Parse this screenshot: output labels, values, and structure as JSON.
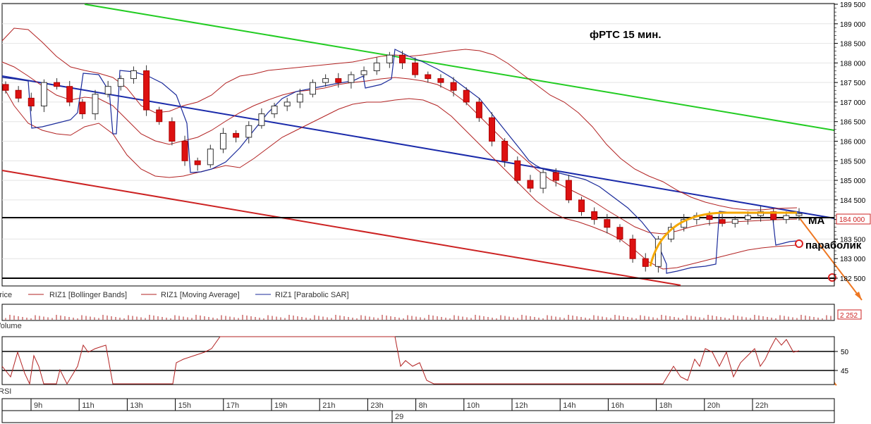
{
  "title": "фРТС   15 мин.",
  "annotations": {
    "ma": "MA",
    "parabolic": "параболик"
  },
  "legend": {
    "price": "Price",
    "bollinger": "RIZ1 [Bollinger Bands]",
    "ma": "RIZ1 [Moving Average]",
    "psar": "RIZ1 [Parabolic SAR]"
  },
  "volume_label": "Volume",
  "volume_value": "2 252",
  "rsi_label": "RSI",
  "current_price": "184 000",
  "time_labels": [
    "9h",
    "11h",
    "13h",
    "15h",
    "17h",
    "19h",
    "21h",
    "23h",
    "8h",
    "10h",
    "12h",
    "14h",
    "16h",
    "18h",
    "20h",
    "22h"
  ],
  "date_label": "29",
  "colors": {
    "bull": "#ffffff",
    "bear": "#dd1111",
    "bollinger": "#b22222",
    "ma": "#b22222",
    "psar": "#1a2a9a",
    "trend_upper_green": "#22cc22",
    "trend_mid_blue": "#1a2aaa",
    "trend_lower_red": "#cc2222",
    "arc": "#f5a800",
    "arrow": "#ee7722"
  },
  "chart_data": {
    "type": "candlestick",
    "title": "фРТС   15 мин.",
    "ylim": [
      182500,
      189500
    ],
    "y_ticks": [
      182500,
      183000,
      183500,
      184000,
      184500,
      185000,
      185500,
      186000,
      186500,
      187000,
      187500,
      188000,
      188500,
      189000,
      189500
    ],
    "horizontal_levels": [
      184000,
      182500
    ],
    "candles_approx_close": [
      187300,
      187100,
      186900,
      187500,
      187400,
      187000,
      186700,
      187200,
      187400,
      187600,
      187800,
      186800,
      186500,
      186000,
      185500,
      185400,
      185800,
      186200,
      186100,
      186400,
      186700,
      186900,
      187000,
      187200,
      187500,
      187600,
      187500,
      187700,
      187800,
      188000,
      188200,
      188000,
      187700,
      187600,
      187500,
      187300,
      187000,
      186600,
      186000,
      185500,
      185000,
      184800,
      185200,
      185000,
      184500,
      184200,
      184000,
      183800,
      183500,
      183000,
      182800,
      183500,
      183800,
      184000,
      184100,
      184000,
      183900,
      184000,
      184100,
      184200,
      184000,
      184100,
      184150
    ],
    "indicators": [
      "Bollinger Bands",
      "Moving Average",
      "Parabolic SAR"
    ],
    "volume_last": 2252,
    "rsi_ticks": [
      45,
      50
    ]
  }
}
